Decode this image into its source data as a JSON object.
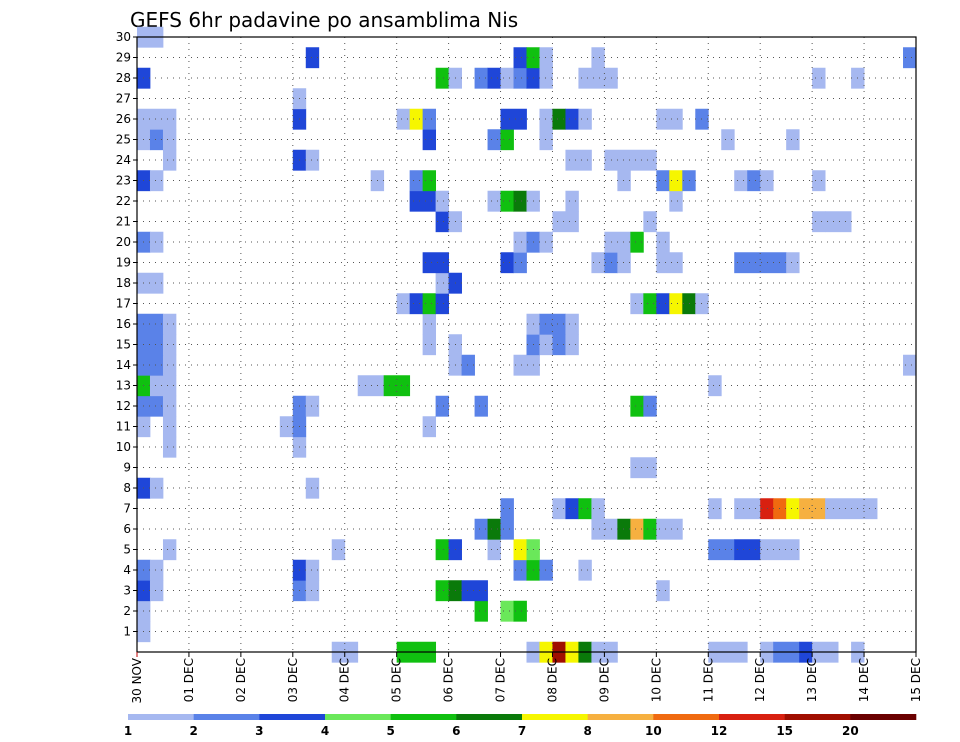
{
  "chart_data": {
    "type": "heatmap",
    "title": "GEFS 6hr padavine po ansamblima Nis",
    "xlabel": "",
    "ylabel": "",
    "x_range": [
      0,
      60
    ],
    "y_range": [
      0,
      30
    ],
    "x_ticks": [
      {
        "value": 0,
        "label": "30 NOV"
      },
      {
        "value": 4,
        "label": "01 DEC"
      },
      {
        "value": 8,
        "label": "02 DEC"
      },
      {
        "value": 12,
        "label": "03 DEC"
      },
      {
        "value": 16,
        "label": "04 DEC"
      },
      {
        "value": 20,
        "label": "05 DEC"
      },
      {
        "value": 24,
        "label": "06 DEC"
      },
      {
        "value": 28,
        "label": "07 DEC"
      },
      {
        "value": 32,
        "label": "08 DEC"
      },
      {
        "value": 36,
        "label": "09 DEC"
      },
      {
        "value": 40,
        "label": "10 DEC"
      },
      {
        "value": 44,
        "label": "11 DEC"
      },
      {
        "value": 48,
        "label": "12 DEC"
      },
      {
        "value": 52,
        "label": "13 DEC"
      },
      {
        "value": 56,
        "label": "14 DEC"
      },
      {
        "value": 60,
        "label": "15 DEC"
      }
    ],
    "y_ticks": [
      "1",
      "2",
      "3",
      "4",
      "5",
      "6",
      "7",
      "8",
      "9",
      "10",
      "11",
      "12",
      "13",
      "14",
      "15",
      "16",
      "17",
      "18",
      "19",
      "20",
      "21",
      "22",
      "23",
      "24",
      "25",
      "26",
      "27",
      "28",
      "29",
      "30"
    ],
    "legend": {
      "labels": [
        "1",
        "2",
        "3",
        "4",
        "5",
        "6",
        "7",
        "8",
        "10",
        "12",
        "15",
        "20"
      ],
      "colors": [
        "#a6b8f0",
        "#5a82e8",
        "#1f46d8",
        "#6ae85a",
        "#10c010",
        "#0a7a0a",
        "#f6f600",
        "#f6b040",
        "#f06a10",
        "#d82010",
        "#a00e00",
        "#6a0000"
      ]
    },
    "cells_format": "[member_row, start_step, end_step_exclusive, level_index]",
    "cells": [
      [
        0,
        15,
        17,
        0
      ],
      [
        0,
        20,
        23,
        4
      ],
      [
        0,
        30,
        31,
        0
      ],
      [
        0,
        31,
        32,
        6
      ],
      [
        0,
        32,
        33,
        10
      ],
      [
        0,
        33,
        34,
        6
      ],
      [
        0,
        34,
        35,
        5
      ],
      [
        0,
        35,
        37,
        0
      ],
      [
        0,
        44,
        47,
        0
      ],
      [
        0,
        48,
        49,
        0
      ],
      [
        0,
        49,
        51,
        1
      ],
      [
        0,
        51,
        52,
        2
      ],
      [
        0,
        52,
        54,
        0
      ],
      [
        0,
        55,
        56,
        0
      ],
      [
        1,
        0,
        1,
        0
      ],
      [
        2,
        0,
        1,
        0
      ],
      [
        2,
        26,
        27,
        4
      ],
      [
        2,
        28,
        29,
        3
      ],
      [
        2,
        29,
        30,
        4
      ],
      [
        3,
        0,
        1,
        2
      ],
      [
        3,
        1,
        2,
        0
      ],
      [
        3,
        12,
        13,
        1
      ],
      [
        3,
        13,
        14,
        0
      ],
      [
        3,
        23,
        24,
        4
      ],
      [
        3,
        24,
        25,
        5
      ],
      [
        3,
        25,
        27,
        2
      ],
      [
        3,
        40,
        41,
        0
      ],
      [
        4,
        0,
        1,
        1
      ],
      [
        4,
        1,
        2,
        0
      ],
      [
        4,
        12,
        13,
        2
      ],
      [
        4,
        13,
        14,
        0
      ],
      [
        4,
        29,
        30,
        1
      ],
      [
        4,
        30,
        31,
        4
      ],
      [
        4,
        31,
        32,
        1
      ],
      [
        4,
        34,
        35,
        0
      ],
      [
        5,
        2,
        3,
        0
      ],
      [
        5,
        15,
        16,
        0
      ],
      [
        5,
        23,
        24,
        4
      ],
      [
        5,
        24,
        25,
        2
      ],
      [
        5,
        27,
        28,
        0
      ],
      [
        5,
        29,
        30,
        6
      ],
      [
        5,
        30,
        31,
        3
      ],
      [
        5,
        44,
        46,
        1
      ],
      [
        5,
        46,
        48,
        2
      ],
      [
        5,
        48,
        51,
        0
      ],
      [
        6,
        26,
        27,
        1
      ],
      [
        6,
        27,
        28,
        5
      ],
      [
        6,
        28,
        29,
        1
      ],
      [
        6,
        35,
        37,
        0
      ],
      [
        6,
        37,
        38,
        5
      ],
      [
        6,
        38,
        39,
        7
      ],
      [
        6,
        39,
        40,
        4
      ],
      [
        6,
        40,
        42,
        0
      ],
      [
        7,
        28,
        29,
        1
      ],
      [
        7,
        32,
        33,
        0
      ],
      [
        7,
        33,
        34,
        2
      ],
      [
        7,
        34,
        35,
        4
      ],
      [
        7,
        35,
        36,
        0
      ],
      [
        7,
        44,
        45,
        0
      ],
      [
        7,
        46,
        48,
        0
      ],
      [
        7,
        48,
        49,
        9
      ],
      [
        7,
        49,
        50,
        8
      ],
      [
        7,
        50,
        51,
        6
      ],
      [
        7,
        51,
        53,
        7
      ],
      [
        7,
        53,
        57,
        0
      ],
      [
        8,
        0,
        1,
        2
      ],
      [
        8,
        1,
        2,
        0
      ],
      [
        8,
        13,
        14,
        0
      ],
      [
        9,
        38,
        40,
        0
      ],
      [
        10,
        2,
        3,
        0
      ],
      [
        10,
        12,
        13,
        0
      ],
      [
        11,
        0,
        1,
        0
      ],
      [
        11,
        2,
        3,
        0
      ],
      [
        11,
        11,
        12,
        0
      ],
      [
        11,
        12,
        13,
        1
      ],
      [
        11,
        22,
        23,
        0
      ],
      [
        12,
        0,
        2,
        1
      ],
      [
        12,
        2,
        3,
        0
      ],
      [
        12,
        12,
        13,
        1
      ],
      [
        12,
        13,
        14,
        0
      ],
      [
        12,
        23,
        24,
        1
      ],
      [
        12,
        26,
        27,
        1
      ],
      [
        12,
        38,
        39,
        4
      ],
      [
        12,
        39,
        40,
        1
      ],
      [
        13,
        0,
        1,
        4
      ],
      [
        13,
        1,
        3,
        0
      ],
      [
        13,
        17,
        19,
        0
      ],
      [
        13,
        19,
        21,
        4
      ],
      [
        13,
        44,
        45,
        0
      ],
      [
        14,
        0,
        2,
        1
      ],
      [
        14,
        2,
        3,
        0
      ],
      [
        14,
        24,
        25,
        0
      ],
      [
        14,
        25,
        26,
        1
      ],
      [
        14,
        29,
        31,
        0
      ],
      [
        14,
        59,
        60,
        0
      ],
      [
        15,
        0,
        2,
        1
      ],
      [
        15,
        2,
        3,
        0
      ],
      [
        15,
        22,
        23,
        0
      ],
      [
        15,
        24,
        25,
        0
      ],
      [
        15,
        30,
        31,
        1
      ],
      [
        15,
        31,
        32,
        0
      ],
      [
        15,
        32,
        33,
        1
      ],
      [
        15,
        33,
        34,
        0
      ],
      [
        16,
        0,
        2,
        1
      ],
      [
        16,
        2,
        3,
        0
      ],
      [
        16,
        22,
        23,
        0
      ],
      [
        16,
        30,
        31,
        0
      ],
      [
        16,
        31,
        33,
        1
      ],
      [
        16,
        33,
        34,
        0
      ],
      [
        17,
        20,
        21,
        0
      ],
      [
        17,
        21,
        22,
        2
      ],
      [
        17,
        22,
        23,
        4
      ],
      [
        17,
        23,
        24,
        2
      ],
      [
        17,
        38,
        39,
        0
      ],
      [
        17,
        39,
        40,
        4
      ],
      [
        17,
        40,
        41,
        2
      ],
      [
        17,
        41,
        42,
        6
      ],
      [
        17,
        42,
        43,
        5
      ],
      [
        17,
        43,
        44,
        0
      ],
      [
        18,
        0,
        2,
        0
      ],
      [
        18,
        23,
        24,
        0
      ],
      [
        18,
        24,
        25,
        2
      ],
      [
        19,
        22,
        24,
        2
      ],
      [
        19,
        28,
        29,
        2
      ],
      [
        19,
        29,
        30,
        1
      ],
      [
        19,
        35,
        36,
        0
      ],
      [
        19,
        36,
        37,
        1
      ],
      [
        19,
        37,
        38,
        0
      ],
      [
        19,
        40,
        42,
        0
      ],
      [
        19,
        46,
        50,
        1
      ],
      [
        19,
        50,
        51,
        0
      ],
      [
        20,
        0,
        1,
        1
      ],
      [
        20,
        1,
        2,
        0
      ],
      [
        20,
        29,
        30,
        0
      ],
      [
        20,
        30,
        31,
        1
      ],
      [
        20,
        31,
        32,
        0
      ],
      [
        20,
        36,
        38,
        0
      ],
      [
        20,
        38,
        39,
        4
      ],
      [
        20,
        40,
        41,
        0
      ],
      [
        21,
        23,
        24,
        2
      ],
      [
        21,
        24,
        25,
        0
      ],
      [
        21,
        32,
        34,
        0
      ],
      [
        21,
        39,
        40,
        0
      ],
      [
        21,
        52,
        53,
        0
      ],
      [
        21,
        53,
        55,
        0
      ],
      [
        22,
        21,
        23,
        2
      ],
      [
        22,
        23,
        24,
        0
      ],
      [
        22,
        27,
        28,
        0
      ],
      [
        22,
        28,
        29,
        4
      ],
      [
        22,
        29,
        30,
        5
      ],
      [
        22,
        30,
        31,
        0
      ],
      [
        22,
        33,
        34,
        0
      ],
      [
        22,
        41,
        42,
        0
      ],
      [
        23,
        0,
        1,
        2
      ],
      [
        23,
        1,
        2,
        0
      ],
      [
        23,
        18,
        19,
        0
      ],
      [
        23,
        21,
        22,
        1
      ],
      [
        23,
        22,
        23,
        4
      ],
      [
        23,
        37,
        38,
        0
      ],
      [
        23,
        40,
        41,
        1
      ],
      [
        23,
        41,
        42,
        6
      ],
      [
        23,
        42,
        43,
        1
      ],
      [
        23,
        46,
        47,
        0
      ],
      [
        23,
        47,
        48,
        1
      ],
      [
        23,
        48,
        49,
        0
      ],
      [
        23,
        52,
        53,
        0
      ],
      [
        24,
        2,
        3,
        0
      ],
      [
        24,
        12,
        13,
        2
      ],
      [
        24,
        13,
        14,
        0
      ],
      [
        24,
        33,
        35,
        0
      ],
      [
        24,
        36,
        40,
        0
      ],
      [
        25,
        0,
        1,
        0
      ],
      [
        25,
        1,
        2,
        1
      ],
      [
        25,
        2,
        3,
        0
      ],
      [
        25,
        22,
        23,
        2
      ],
      [
        25,
        27,
        28,
        1
      ],
      [
        25,
        28,
        29,
        4
      ],
      [
        25,
        31,
        32,
        0
      ],
      [
        25,
        45,
        46,
        0
      ],
      [
        25,
        50,
        51,
        0
      ],
      [
        26,
        0,
        3,
        0
      ],
      [
        26,
        12,
        13,
        2
      ],
      [
        26,
        20,
        21,
        0
      ],
      [
        26,
        21,
        22,
        6
      ],
      [
        26,
        22,
        23,
        1
      ],
      [
        26,
        28,
        30,
        2
      ],
      [
        26,
        31,
        32,
        0
      ],
      [
        26,
        32,
        33,
        5
      ],
      [
        26,
        33,
        34,
        2
      ],
      [
        26,
        34,
        35,
        0
      ],
      [
        26,
        40,
        42,
        0
      ],
      [
        26,
        43,
        44,
        1
      ],
      [
        27,
        12,
        13,
        0
      ],
      [
        28,
        0,
        1,
        2
      ],
      [
        28,
        23,
        24,
        4
      ],
      [
        28,
        24,
        25,
        0
      ],
      [
        28,
        26,
        27,
        1
      ],
      [
        28,
        27,
        28,
        2
      ],
      [
        28,
        28,
        29,
        0
      ],
      [
        28,
        29,
        30,
        1
      ],
      [
        28,
        30,
        31,
        2
      ],
      [
        28,
        31,
        32,
        0
      ],
      [
        28,
        34,
        37,
        0
      ],
      [
        28,
        52,
        53,
        0
      ],
      [
        28,
        55,
        56,
        0
      ],
      [
        29,
        13,
        14,
        2
      ],
      [
        29,
        29,
        30,
        2
      ],
      [
        29,
        30,
        31,
        4
      ],
      [
        29,
        31,
        32,
        0
      ],
      [
        29,
        35,
        36,
        0
      ],
      [
        29,
        59,
        60,
        1
      ],
      [
        30,
        0,
        2,
        0
      ]
    ]
  }
}
